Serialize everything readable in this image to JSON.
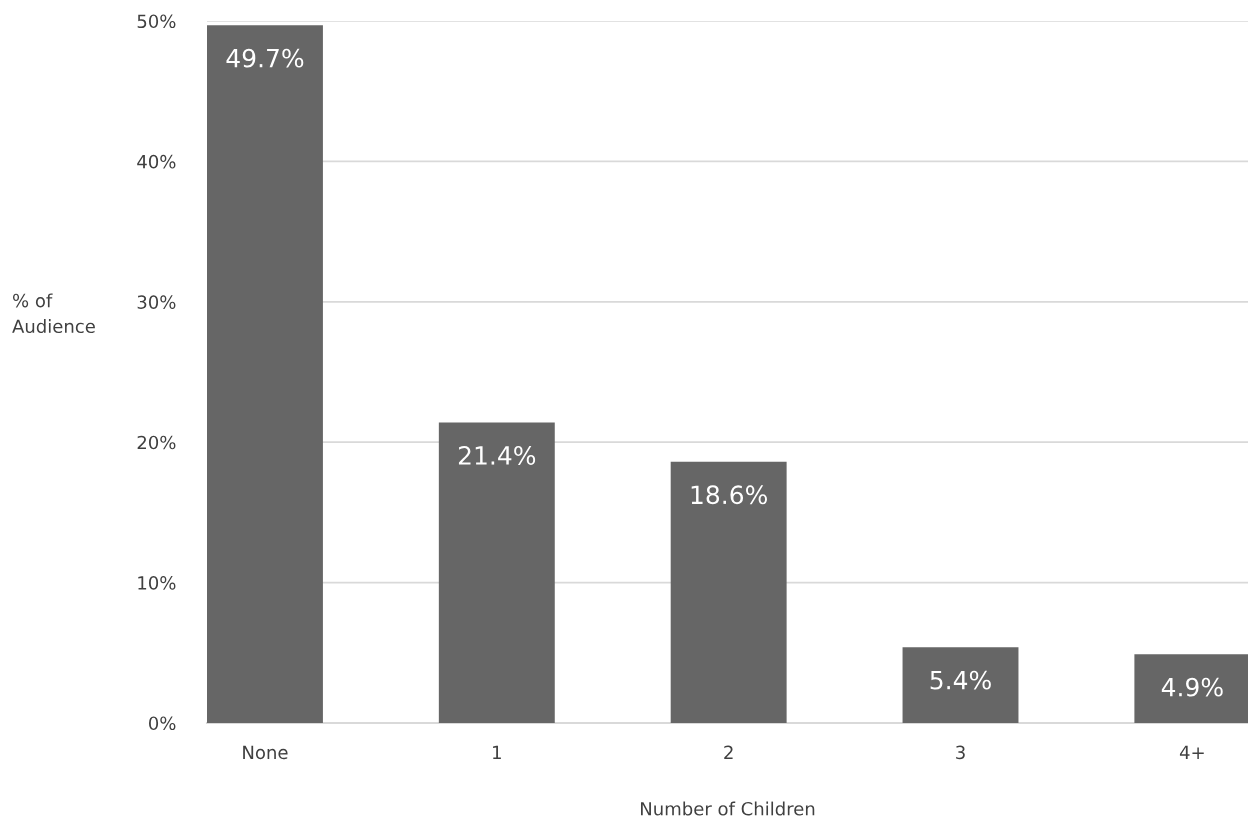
{
  "chart_data": {
    "type": "bar",
    "xlabel": "Number of Children",
    "ylabel": "% of\nAudience",
    "categories": [
      "None",
      "1",
      "2",
      "3",
      "4+"
    ],
    "values": [
      49.7,
      21.4,
      18.6,
      5.4,
      4.9
    ],
    "value_labels": [
      "49.7%",
      "21.4%",
      "18.6%",
      "5.4%",
      "4.9%"
    ],
    "color": "#666666",
    "ylim": [
      0,
      50
    ],
    "yticks": [
      {
        "value": 0,
        "label": "0%"
      },
      {
        "value": 10,
        "label": "10%"
      },
      {
        "value": 20,
        "label": "20%"
      },
      {
        "value": 30,
        "label": "30%"
      },
      {
        "value": 40,
        "label": "40%"
      },
      {
        "value": 50,
        "label": "50%"
      }
    ],
    "grid": "y",
    "legend": false
  }
}
